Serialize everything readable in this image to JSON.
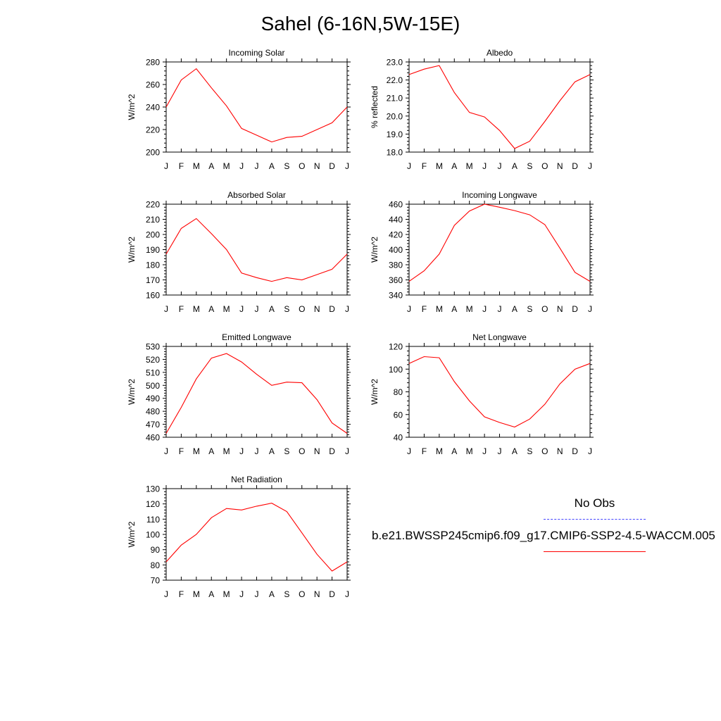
{
  "figure": {
    "title": "Sahel (6-16N,5W-15E)"
  },
  "legend": {
    "obs_label": "No Obs",
    "model_label": "b.e21.BWSSP245cmip6.f09_g17.CMIP6-SSP2-4.5-WACCM.005",
    "obs_color": "#4444ff",
    "model_color": "#ff0000"
  },
  "chart_data": [
    {
      "type": "line",
      "title": "Incoming Solar",
      "ylabel": "W/m^2",
      "categories": [
        "J",
        "F",
        "M",
        "A",
        "M",
        "J",
        "J",
        "A",
        "S",
        "O",
        "N",
        "D",
        "J"
      ],
      "ylim": [
        200,
        280
      ],
      "yticks": [
        "200",
        "220",
        "240",
        "260",
        "280"
      ],
      "series": [
        {
          "values": [
            240,
            264,
            274,
            257,
            241,
            221,
            215,
            209,
            213,
            214,
            220,
            226,
            240
          ]
        }
      ]
    },
    {
      "type": "line",
      "title": "Albedo",
      "ylabel": "% reflected",
      "categories": [
        "J",
        "F",
        "M",
        "A",
        "M",
        "J",
        "J",
        "A",
        "S",
        "O",
        "N",
        "D",
        "J"
      ],
      "ylim": [
        18.0,
        23.0
      ],
      "yticks": [
        "18.0",
        "19.0",
        "20.0",
        "21.0",
        "22.0",
        "23.0"
      ],
      "series": [
        {
          "values": [
            22.3,
            22.6,
            22.8,
            21.3,
            20.2,
            19.95,
            19.2,
            18.2,
            18.6,
            19.7,
            20.85,
            21.9,
            22.3
          ]
        }
      ]
    },
    {
      "type": "line",
      "title": "Absorbed Solar",
      "ylabel": "W/m^2",
      "categories": [
        "J",
        "F",
        "M",
        "A",
        "M",
        "J",
        "J",
        "A",
        "S",
        "O",
        "N",
        "D",
        "J"
      ],
      "ylim": [
        160,
        220
      ],
      "yticks": [
        "160",
        "170",
        "180",
        "190",
        "200",
        "210",
        "220"
      ],
      "series": [
        {
          "values": [
            187,
            204,
            210.5,
            200.5,
            190,
            174.5,
            171.5,
            169,
            171.5,
            170,
            173.5,
            177,
            187
          ]
        }
      ]
    },
    {
      "type": "line",
      "title": "Incoming Longwave",
      "ylabel": "W/m^2",
      "categories": [
        "J",
        "F",
        "M",
        "A",
        "M",
        "J",
        "J",
        "A",
        "S",
        "O",
        "N",
        "D",
        "J"
      ],
      "ylim": [
        340,
        460
      ],
      "yticks": [
        "340",
        "360",
        "380",
        "400",
        "420",
        "440",
        "460"
      ],
      "series": [
        {
          "values": [
            358,
            372,
            394,
            432,
            451,
            460,
            456,
            451.5,
            446,
            433,
            402,
            370,
            358
          ]
        }
      ]
    },
    {
      "type": "line",
      "title": "Emitted Longwave",
      "ylabel": "W/m^2",
      "categories": [
        "J",
        "F",
        "M",
        "A",
        "M",
        "J",
        "J",
        "A",
        "S",
        "O",
        "N",
        "D",
        "J"
      ],
      "ylim": [
        460,
        530
      ],
      "yticks": [
        "460",
        "470",
        "480",
        "490",
        "500",
        "510",
        "520",
        "530"
      ],
      "series": [
        {
          "values": [
            463,
            483,
            505,
            521,
            524.5,
            518,
            508.5,
            500,
            502.5,
            502,
            489,
            471,
            463
          ]
        }
      ]
    },
    {
      "type": "line",
      "title": "Net Longwave",
      "ylabel": "W/m^2",
      "categories": [
        "J",
        "F",
        "M",
        "A",
        "M",
        "J",
        "J",
        "A",
        "S",
        "O",
        "N",
        "D",
        "J"
      ],
      "ylim": [
        40,
        120
      ],
      "yticks": [
        "40",
        "60",
        "80",
        "100",
        "120"
      ],
      "series": [
        {
          "values": [
            105,
            111,
            110,
            89,
            72,
            58,
            53,
            49,
            56,
            69,
            87,
            100,
            105
          ]
        }
      ]
    },
    {
      "type": "line",
      "title": "Net Radiation",
      "ylabel": "W/m^2",
      "categories": [
        "J",
        "F",
        "M",
        "A",
        "M",
        "J",
        "J",
        "A",
        "S",
        "O",
        "N",
        "D",
        "J"
      ],
      "ylim": [
        70,
        130
      ],
      "yticks": [
        "70",
        "80",
        "90",
        "100",
        "110",
        "120",
        "130"
      ],
      "series": [
        {
          "values": [
            82,
            93,
            100,
            111,
            117,
            116,
            118.5,
            120.5,
            115,
            101,
            87,
            76,
            82
          ]
        }
      ]
    }
  ]
}
